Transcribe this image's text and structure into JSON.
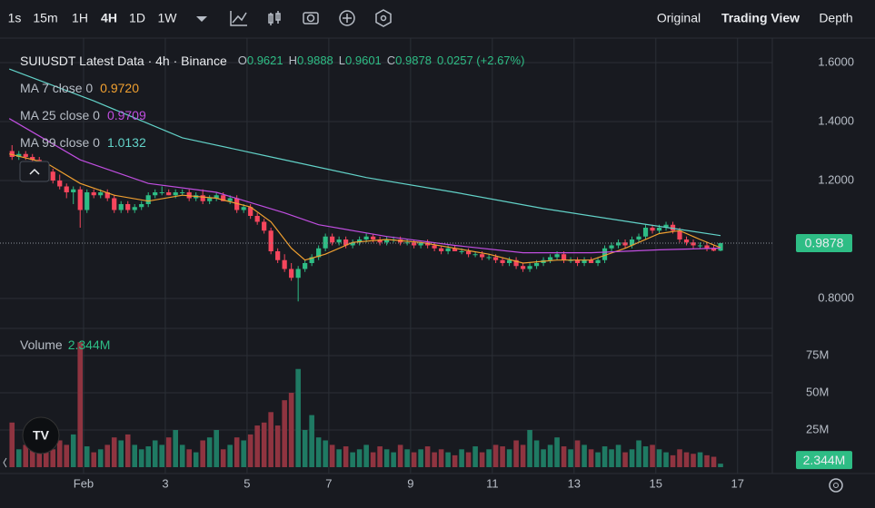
{
  "toolbar": {
    "intervals": [
      "1s",
      "15m",
      "1H",
      "4H",
      "1D",
      "1W"
    ],
    "active": "4H",
    "views": [
      "Original",
      "Trading View",
      "Depth"
    ],
    "active_view": "Trading View"
  },
  "chart_data": {
    "type": "candlestick",
    "title": "SUIUSDT Latest Data · 4h · Binance",
    "ohlc": [
      {
        "label": "O",
        "value": "0.9621"
      },
      {
        "label": "H",
        "value": "0.9888"
      },
      {
        "label": "L",
        "value": "0.9601"
      },
      {
        "label": "C",
        "value": "0.9878"
      }
    ],
    "change": "0.0257 (+2.67%)",
    "up_color": "#2ebd85",
    "down_color": "#f6465d",
    "candles": [
      [
        1.3,
        1.32,
        1.27,
        1.28
      ],
      [
        1.28,
        1.3,
        1.27,
        1.29
      ],
      [
        1.29,
        1.3,
        1.27,
        1.28
      ],
      [
        1.28,
        1.29,
        1.26,
        1.27
      ],
      [
        1.27,
        1.28,
        1.24,
        1.25
      ],
      [
        1.25,
        1.26,
        1.22,
        1.23
      ],
      [
        1.23,
        1.24,
        1.19,
        1.2
      ],
      [
        1.2,
        1.22,
        1.17,
        1.18
      ],
      [
        1.18,
        1.19,
        1.14,
        1.16
      ],
      [
        1.16,
        1.18,
        1.12,
        1.17
      ],
      [
        1.17,
        1.18,
        1.04,
        1.1
      ],
      [
        1.1,
        1.17,
        1.09,
        1.16
      ],
      [
        1.16,
        1.17,
        1.14,
        1.15
      ],
      [
        1.15,
        1.17,
        1.14,
        1.16
      ],
      [
        1.16,
        1.17,
        1.13,
        1.14
      ],
      [
        1.14,
        1.15,
        1.09,
        1.1
      ],
      [
        1.1,
        1.13,
        1.09,
        1.12
      ],
      [
        1.12,
        1.13,
        1.09,
        1.1
      ],
      [
        1.1,
        1.12,
        1.09,
        1.11
      ],
      [
        1.11,
        1.13,
        1.1,
        1.12
      ],
      [
        1.12,
        1.16,
        1.11,
        1.15
      ],
      [
        1.15,
        1.17,
        1.14,
        1.16
      ],
      [
        1.16,
        1.18,
        1.15,
        1.16
      ],
      [
        1.16,
        1.17,
        1.15,
        1.15
      ],
      [
        1.15,
        1.17,
        1.14,
        1.16
      ],
      [
        1.16,
        1.17,
        1.15,
        1.16
      ],
      [
        1.16,
        1.17,
        1.13,
        1.14
      ],
      [
        1.14,
        1.16,
        1.13,
        1.15
      ],
      [
        1.15,
        1.17,
        1.12,
        1.13
      ],
      [
        1.13,
        1.15,
        1.12,
        1.14
      ],
      [
        1.14,
        1.16,
        1.13,
        1.15
      ],
      [
        1.15,
        1.16,
        1.13,
        1.13
      ],
      [
        1.13,
        1.15,
        1.12,
        1.14
      ],
      [
        1.14,
        1.15,
        1.09,
        1.1
      ],
      [
        1.1,
        1.12,
        1.09,
        1.11
      ],
      [
        1.11,
        1.12,
        1.07,
        1.08
      ],
      [
        1.08,
        1.09,
        1.05,
        1.06
      ],
      [
        1.06,
        1.07,
        1.02,
        1.03
      ],
      [
        1.03,
        1.04,
        0.95,
        0.96
      ],
      [
        0.96,
        0.97,
        0.92,
        0.93
      ],
      [
        0.93,
        0.95,
        0.89,
        0.9
      ],
      [
        0.9,
        0.92,
        0.86,
        0.87
      ],
      [
        0.87,
        0.91,
        0.79,
        0.9
      ],
      [
        0.9,
        0.93,
        0.89,
        0.92
      ],
      [
        0.92,
        0.95,
        0.91,
        0.94
      ],
      [
        0.94,
        0.98,
        0.93,
        0.97
      ],
      [
        0.97,
        1.02,
        0.96,
        1.01
      ],
      [
        1.01,
        1.02,
        0.98,
        0.99
      ],
      [
        0.99,
        1.01,
        0.98,
        1.0
      ],
      [
        1.0,
        1.01,
        0.97,
        0.98
      ],
      [
        0.98,
        1.0,
        0.97,
        0.99
      ],
      [
        0.99,
        1.01,
        0.98,
        1.0
      ],
      [
        1.0,
        1.02,
        0.99,
        1.01
      ],
      [
        1.01,
        1.02,
        0.99,
        1.0
      ],
      [
        1.0,
        1.01,
        0.98,
        0.99
      ],
      [
        0.99,
        1.01,
        0.98,
        1.0
      ],
      [
        1.0,
        1.01,
        0.99,
        1.0
      ],
      [
        1.0,
        1.01,
        0.98,
        0.99
      ],
      [
        0.99,
        1.0,
        0.98,
        0.99
      ],
      [
        0.99,
        1.0,
        0.97,
        0.98
      ],
      [
        0.98,
        0.99,
        0.97,
        0.99
      ],
      [
        0.99,
        1.0,
        0.97,
        0.98
      ],
      [
        0.98,
        0.99,
        0.96,
        0.97
      ],
      [
        0.97,
        0.98,
        0.95,
        0.96
      ],
      [
        0.96,
        0.98,
        0.95,
        0.97
      ],
      [
        0.97,
        0.98,
        0.96,
        0.96
      ],
      [
        0.96,
        0.97,
        0.95,
        0.96
      ],
      [
        0.96,
        0.97,
        0.94,
        0.95
      ],
      [
        0.95,
        0.96,
        0.94,
        0.95
      ],
      [
        0.95,
        0.96,
        0.93,
        0.94
      ],
      [
        0.94,
        0.95,
        0.93,
        0.94
      ],
      [
        0.94,
        0.95,
        0.92,
        0.93
      ],
      [
        0.93,
        0.94,
        0.91,
        0.92
      ],
      [
        0.92,
        0.94,
        0.91,
        0.93
      ],
      [
        0.93,
        0.94,
        0.9,
        0.91
      ],
      [
        0.91,
        0.92,
        0.89,
        0.9
      ],
      [
        0.9,
        0.92,
        0.89,
        0.91
      ],
      [
        0.91,
        0.93,
        0.9,
        0.92
      ],
      [
        0.92,
        0.94,
        0.91,
        0.93
      ],
      [
        0.93,
        0.95,
        0.92,
        0.94
      ],
      [
        0.94,
        0.96,
        0.93,
        0.95
      ],
      [
        0.95,
        0.96,
        0.92,
        0.93
      ],
      [
        0.93,
        0.94,
        0.92,
        0.93
      ],
      [
        0.93,
        0.94,
        0.91,
        0.92
      ],
      [
        0.92,
        0.94,
        0.91,
        0.93
      ],
      [
        0.93,
        0.94,
        0.92,
        0.92
      ],
      [
        0.92,
        0.94,
        0.91,
        0.93
      ],
      [
        0.93,
        0.98,
        0.92,
        0.97
      ],
      [
        0.97,
        0.99,
        0.96,
        0.98
      ],
      [
        0.98,
        1.0,
        0.97,
        0.99
      ],
      [
        0.99,
        1.0,
        0.97,
        0.98
      ],
      [
        0.98,
        1.01,
        0.97,
        1.0
      ],
      [
        1.0,
        1.02,
        0.99,
        1.01
      ],
      [
        1.01,
        1.05,
        1.0,
        1.04
      ],
      [
        1.04,
        1.05,
        1.02,
        1.03
      ],
      [
        1.03,
        1.05,
        1.02,
        1.04
      ],
      [
        1.04,
        1.06,
        1.03,
        1.05
      ],
      [
        1.05,
        1.06,
        1.02,
        1.03
      ],
      [
        1.03,
        1.04,
        0.99,
        1.0
      ],
      [
        1.0,
        1.01,
        0.98,
        0.99
      ],
      [
        0.99,
        1.0,
        0.97,
        0.98
      ],
      [
        0.98,
        0.99,
        0.97,
        0.98
      ],
      [
        0.98,
        0.99,
        0.96,
        0.97
      ],
      [
        0.97,
        0.98,
        0.96,
        0.9621
      ],
      [
        0.9621,
        0.9888,
        0.9601,
        0.9878
      ]
    ],
    "ylim": [
      0.7046,
      1.6646
    ],
    "yticks": [
      {
        "value": 1.6,
        "label": "1.6000"
      },
      {
        "value": 1.4,
        "label": "1.4000"
      },
      {
        "value": 1.2,
        "label": "1.2000"
      },
      {
        "value": 0.8,
        "label": "0.8000"
      }
    ],
    "xlim": [
      -1.1,
      111.6
    ],
    "xticks": [
      {
        "value": 10.5,
        "label": "Feb"
      },
      {
        "value": 22.5,
        "label": "3"
      },
      {
        "value": 34.5,
        "label": "5"
      },
      {
        "value": 46.5,
        "label": "7"
      },
      {
        "value": 58.5,
        "label": "9"
      },
      {
        "value": 70.5,
        "label": "11"
      },
      {
        "value": 82.5,
        "label": "13"
      },
      {
        "value": 94.5,
        "label": "15"
      },
      {
        "value": 106.5,
        "label": "17"
      }
    ],
    "last_price": {
      "value": 0.9878,
      "label": "0.9878"
    },
    "series": [
      {
        "name": "MA 7 close 0",
        "color": "#f0a030",
        "last_label": "0.9720",
        "x": [
          -0.4,
          5,
          10,
          15,
          20,
          25,
          30,
          35,
          38,
          41,
          43,
          46,
          50,
          55,
          60,
          65,
          70,
          75,
          80,
          85,
          90,
          95,
          98,
          101,
          104
        ],
        "values": [
          1.29,
          1.26,
          1.19,
          1.15,
          1.13,
          1.15,
          1.14,
          1.11,
          1.06,
          0.97,
          0.93,
          0.95,
          0.99,
          1.0,
          0.99,
          0.97,
          0.95,
          0.92,
          0.93,
          0.93,
          0.97,
          1.02,
          1.03,
          1.0,
          0.972
        ]
      },
      {
        "name": "MA 25 close 0",
        "color": "#c04ee0",
        "last_label": "0.9709",
        "x": [
          -0.4,
          10,
          20,
          30,
          40,
          45,
          55,
          65,
          75,
          85,
          95,
          104
        ],
        "values": [
          1.41,
          1.27,
          1.19,
          1.16,
          1.09,
          1.05,
          1.01,
          0.98,
          0.955,
          0.955,
          0.965,
          0.9709
        ]
      },
      {
        "name": "MA 99 close 0",
        "color": "#62d2c8",
        "last_label": "1.0132",
        "x": [
          -0.4,
          12,
          25,
          38,
          52,
          65,
          78,
          92,
          104
        ],
        "values": [
          1.578,
          1.47,
          1.345,
          1.28,
          1.21,
          1.16,
          1.105,
          1.055,
          1.0132
        ]
      }
    ],
    "volume": {
      "name": "Volume",
      "label": "2.344M",
      "up_color": "#1f7a63",
      "down_color": "#8f3440",
      "values": [
        30,
        12,
        15,
        18,
        20,
        14,
        12,
        18,
        15,
        22,
        84,
        14,
        10,
        12,
        15,
        20,
        18,
        22,
        15,
        12,
        14,
        18,
        15,
        20,
        25,
        15,
        12,
        10,
        18,
        20,
        25,
        12,
        15,
        20,
        18,
        22,
        28,
        30,
        37,
        28,
        45,
        50,
        66,
        25,
        35,
        20,
        18,
        15,
        12,
        14,
        10,
        12,
        15,
        10,
        14,
        12,
        10,
        15,
        12,
        10,
        12,
        14,
        10,
        12,
        10,
        8,
        12,
        10,
        14,
        10,
        12,
        15,
        14,
        12,
        18,
        15,
        25,
        18,
        12,
        15,
        20,
        14,
        12,
        18,
        15,
        12,
        10,
        14,
        12,
        15,
        10,
        12,
        18,
        14,
        15,
        12,
        10,
        8,
        12,
        10,
        9,
        10,
        8,
        7,
        2.344
      ],
      "ylim": [
        0,
        88.4
      ],
      "yticks": [
        {
          "value": 25,
          "label": "25M"
        },
        {
          "value": 50,
          "label": "50M"
        },
        {
          "value": 75,
          "label": "75M"
        }
      ],
      "last": {
        "value": 2.344,
        "label": "2.344M"
      }
    }
  }
}
